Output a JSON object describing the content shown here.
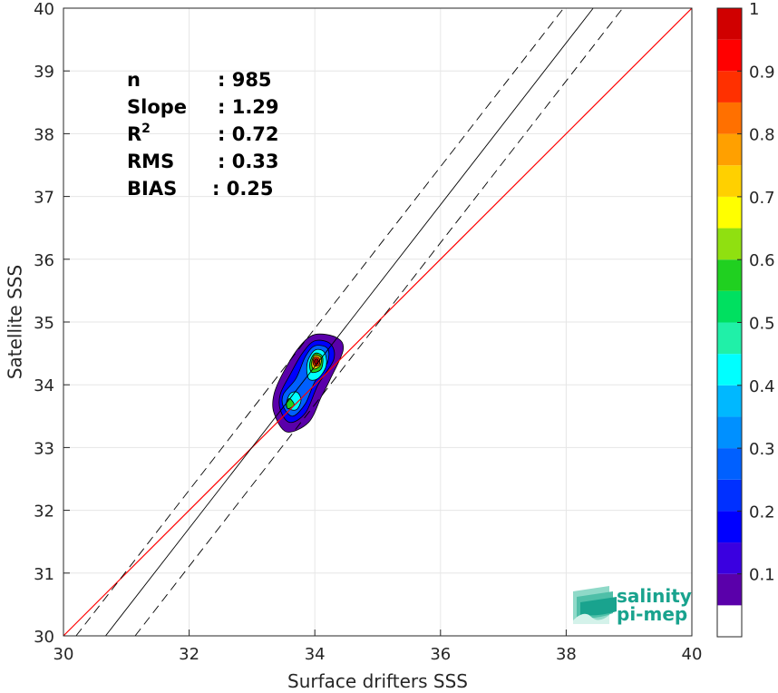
{
  "chart_data": {
    "type": "density-scatter",
    "xlabel": "Surface drifters SSS",
    "ylabel": "Satellite SSS",
    "xlim": [
      30,
      40
    ],
    "ylim": [
      30,
      40
    ],
    "xticks": [
      30,
      32,
      34,
      36,
      38,
      40
    ],
    "yticks": [
      30,
      31,
      32,
      33,
      34,
      35,
      36,
      37,
      38,
      39,
      40
    ],
    "grid": true,
    "stats": [
      {
        "label": "n",
        "value": ": 985"
      },
      {
        "label": "Slope",
        "value": ": 1.29"
      },
      {
        "label": "R",
        "sup": "2",
        "value": ": 0.72"
      },
      {
        "label": "RMS",
        "value": ": 0.33"
      },
      {
        "label": "BIAS",
        "value": ": 0.25"
      }
    ],
    "reference_lines": [
      {
        "name": "1:1",
        "color": "#ff0000",
        "style": "solid",
        "points": [
          [
            30,
            30
          ],
          [
            40,
            40
          ]
        ]
      },
      {
        "name": "fit",
        "color": "#000000",
        "style": "solid",
        "points": [
          [
            30.67,
            30
          ],
          [
            38.43,
            40
          ]
        ]
      },
      {
        "name": "fit-upper",
        "color": "#000000",
        "style": "dashed",
        "points": [
          [
            30.2,
            30
          ],
          [
            37.96,
            40
          ]
        ]
      },
      {
        "name": "fit-lower",
        "color": "#000000",
        "style": "dashed",
        "points": [
          [
            31.14,
            30
          ],
          [
            38.9,
            40
          ]
        ]
      }
    ],
    "density_contours": [
      {
        "level": 0.05,
        "points": [
          [
            33.35,
            33.55
          ],
          [
            33.55,
            33.25
          ],
          [
            33.9,
            33.4
          ],
          [
            34.1,
            33.8
          ],
          [
            34.25,
            34.1
          ],
          [
            34.45,
            34.55
          ],
          [
            34.35,
            34.75
          ],
          [
            34.0,
            34.8
          ],
          [
            33.75,
            34.6
          ],
          [
            33.5,
            34.2
          ],
          [
            33.35,
            33.85
          ]
        ]
      },
      {
        "level": 0.15,
        "points": [
          [
            33.45,
            33.6
          ],
          [
            33.6,
            33.4
          ],
          [
            33.85,
            33.55
          ],
          [
            34.05,
            34.0
          ],
          [
            34.3,
            34.4
          ],
          [
            34.25,
            34.65
          ],
          [
            34.0,
            34.7
          ],
          [
            33.8,
            34.5
          ],
          [
            33.6,
            34.15
          ],
          [
            33.45,
            33.85
          ]
        ]
      },
      {
        "level": 0.25,
        "points": [
          [
            33.5,
            33.65
          ],
          [
            33.65,
            33.5
          ],
          [
            33.85,
            33.7
          ],
          [
            34.0,
            34.05
          ],
          [
            34.2,
            34.35
          ],
          [
            34.2,
            34.58
          ],
          [
            34.0,
            34.62
          ],
          [
            33.85,
            34.45
          ],
          [
            33.7,
            34.1
          ],
          [
            33.5,
            33.85
          ]
        ]
      },
      {
        "level": 0.4,
        "points": [
          [
            33.55,
            33.65
          ],
          [
            33.7,
            33.6
          ],
          [
            33.78,
            33.75
          ],
          [
            33.72,
            33.88
          ],
          [
            33.6,
            33.85
          ]
        ]
      },
      {
        "level": 0.4,
        "points": [
          [
            33.9,
            34.1
          ],
          [
            34.05,
            34.1
          ],
          [
            34.18,
            34.3
          ],
          [
            34.15,
            34.52
          ],
          [
            34.0,
            34.55
          ],
          [
            33.88,
            34.35
          ]
        ]
      },
      {
        "level": 0.55,
        "points": [
          [
            33.57,
            33.62
          ],
          [
            33.67,
            33.68
          ],
          [
            33.6,
            33.78
          ],
          [
            33.55,
            33.72
          ]
        ]
      },
      {
        "level": 0.55,
        "points": [
          [
            33.95,
            34.2
          ],
          [
            34.1,
            34.25
          ],
          [
            34.12,
            34.45
          ],
          [
            34.0,
            34.5
          ],
          [
            33.92,
            34.35
          ]
        ]
      },
      {
        "level": 0.7,
        "points": [
          [
            33.98,
            34.25
          ],
          [
            34.08,
            34.3
          ],
          [
            34.1,
            34.43
          ],
          [
            34.0,
            34.47
          ],
          [
            33.95,
            34.35
          ]
        ]
      },
      {
        "level": 0.85,
        "points": [
          [
            34.0,
            34.3
          ],
          [
            34.07,
            34.32
          ],
          [
            34.07,
            34.42
          ],
          [
            34.0,
            34.44
          ],
          [
            33.97,
            34.36
          ]
        ]
      },
      {
        "level": 1.0,
        "points": [
          [
            34.01,
            34.33
          ],
          [
            34.05,
            34.34
          ],
          [
            34.05,
            34.4
          ],
          [
            34.01,
            34.41
          ],
          [
            33.99,
            34.37
          ]
        ]
      }
    ],
    "colorbar": {
      "ticks": [
        0.1,
        0.2,
        0.3,
        0.4,
        0.5,
        0.6,
        0.7,
        0.8,
        0.9,
        1
      ],
      "tick_labels": [
        "0.1",
        "0.2",
        "0.3",
        "0.4",
        "0.5",
        "0.6",
        "0.7",
        "0.8",
        "0.9",
        "1"
      ],
      "levels": [
        0,
        0.05,
        0.1,
        0.15,
        0.2,
        0.25,
        0.3,
        0.35,
        0.4,
        0.45,
        0.5,
        0.55,
        0.6,
        0.65,
        0.7,
        0.75,
        0.8,
        0.85,
        0.9,
        0.95,
        1.0
      ],
      "colors": [
        "#ffffff",
        "#5a00aa",
        "#3a00e0",
        "#0000ff",
        "#0030ff",
        "#0060ff",
        "#0090ff",
        "#00b8ff",
        "#00ffff",
        "#20f0a8",
        "#00e060",
        "#20d020",
        "#90e010",
        "#ffff00",
        "#ffd000",
        "#ffa000",
        "#ff7000",
        "#ff3000",
        "#ff0000",
        "#d00000",
        "#8c0000"
      ]
    },
    "logo": {
      "line1": "salinity",
      "line2": "pi-mep"
    }
  }
}
